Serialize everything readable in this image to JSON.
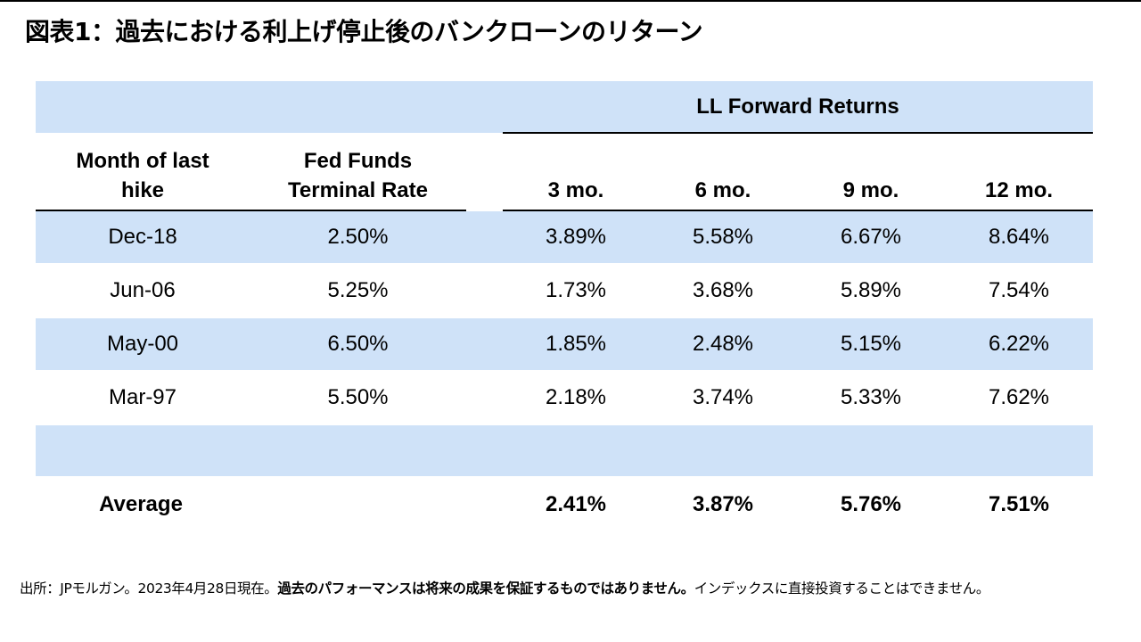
{
  "title": "図表1：過去における利上げ停止後のバンクローンのリターン",
  "chart_data": {
    "type": "table",
    "group_header": "LL Forward Returns",
    "columns": [
      "Month of last hike",
      "Fed Funds Terminal Rate",
      "3 mo.",
      "6 mo.",
      "9 mo.",
      "12 mo."
    ],
    "rows": [
      [
        "Dec-18",
        "2.50%",
        "3.89%",
        "5.58%",
        "6.67%",
        "8.64%"
      ],
      [
        "Jun-06",
        "5.25%",
        "1.73%",
        "3.68%",
        "5.89%",
        "7.54%"
      ],
      [
        "May-00",
        "6.50%",
        "1.85%",
        "2.48%",
        "5.15%",
        "6.22%"
      ],
      [
        "Mar-97",
        "5.50%",
        "2.18%",
        "3.74%",
        "5.33%",
        "7.62%"
      ]
    ],
    "average": [
      "Average",
      "",
      "2.41%",
      "3.87%",
      "5.76%",
      "7.51%"
    ]
  },
  "footnote": {
    "part1": "出所：JPモルガン。2023年4月28日現在。",
    "part2": "過去のパフォーマンスは将来の成果を保証するものではありません。",
    "part3": "インデックスに直接投資することはできません。"
  },
  "colors": {
    "band": "#cfe2f8",
    "text": "#000000",
    "rule": "#000000"
  }
}
